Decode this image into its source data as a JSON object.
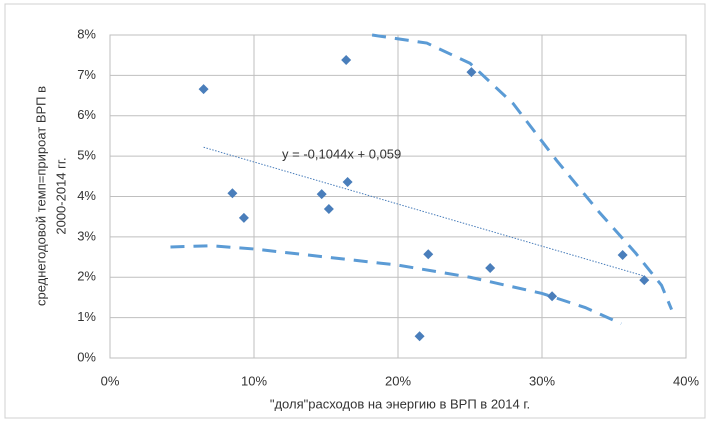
{
  "chart_data": {
    "type": "scatter",
    "x_label": "\"доля\"расходов на энергию в ВРП в 2014 г.",
    "y_label": [
      "среднегодовой темп=прироат ВРП в",
      "2000-2014 гг."
    ],
    "annotation": "y = -0,1044x + 0,059",
    "xlim": [
      0,
      40
    ],
    "ylim": [
      0,
      8
    ],
    "xticks": [
      {
        "value": 0,
        "label": "0%"
      },
      {
        "value": 10,
        "label": "10%"
      },
      {
        "value": 20,
        "label": "20%"
      },
      {
        "value": 30,
        "label": "30%"
      },
      {
        "value": 40,
        "label": "40%"
      }
    ],
    "yticks": [
      {
        "value": 0,
        "label": "0%"
      },
      {
        "value": 1,
        "label": "1%"
      },
      {
        "value": 2,
        "label": "2%"
      },
      {
        "value": 3,
        "label": "3%"
      },
      {
        "value": 4,
        "label": "4%"
      },
      {
        "value": 5,
        "label": "5%"
      },
      {
        "value": 6,
        "label": "6%"
      },
      {
        "value": 7,
        "label": "7%"
      },
      {
        "value": 8,
        "label": "8%"
      }
    ],
    "grid": true,
    "series": [
      {
        "kind": "points",
        "color": "#4a7ebb",
        "x": [
          6.5,
          8.5,
          9.3,
          14.7,
          15.2,
          16.5,
          16.4,
          25.1,
          22.1,
          21.5,
          26.4,
          30.7,
          35.6,
          37.1
        ],
        "values": [
          6.66,
          4.08,
          3.47,
          4.06,
          3.69,
          4.36,
          7.38,
          7.08,
          2.57,
          0.54,
          2.23,
          1.53,
          2.55,
          1.93
        ]
      },
      {
        "kind": "trend",
        "color": "#4a7ebb",
        "x": [
          6.5,
          37.1
        ],
        "values": [
          5.22,
          2.03
        ]
      },
      {
        "kind": "band",
        "color": "#5b9bd5",
        "x": [
          18.2,
          22,
          25,
          28,
          31,
          34,
          36.5,
          38.3,
          39
        ],
        "values": [
          8,
          7.8,
          7.3,
          6.3,
          4.9,
          3.6,
          2.6,
          1.8,
          1.2
        ]
      },
      {
        "kind": "band",
        "color": "#5b9bd5",
        "x": [
          4.2,
          7,
          10,
          15,
          20,
          25,
          30,
          33,
          35.5
        ],
        "values": [
          2.75,
          2.78,
          2.7,
          2.5,
          2.3,
          2.0,
          1.6,
          1.25,
          0.85
        ]
      }
    ]
  }
}
